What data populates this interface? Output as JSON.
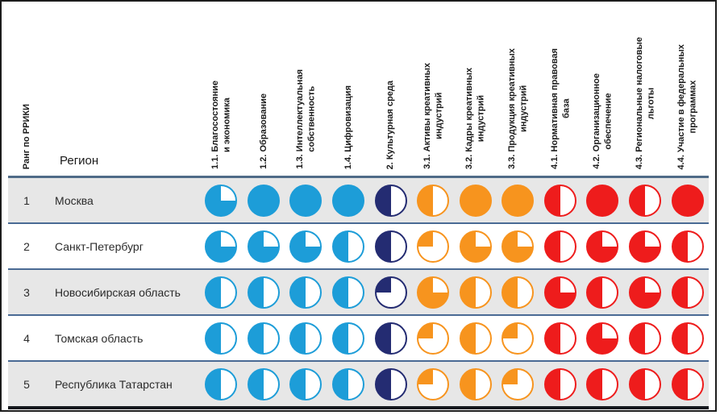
{
  "chart_data": {
    "type": "heatmap",
    "description": "harvey-ball rating table, fill fraction of each circle 0-1",
    "headers": {
      "rank": "Ранг по РРИКИ",
      "region": "Регион"
    },
    "palette": {
      "blue": "#1D9DD8",
      "navy": "#242C72",
      "orange": "#F7941E",
      "red": "#EE1C1C"
    },
    "row_colors": {
      "alt_background": "#E7E7E7",
      "divider": "#4A6A94"
    },
    "columns": [
      {
        "id": "1.1",
        "label": "1.1. Благосостояние\nи экономика",
        "color": "blue"
      },
      {
        "id": "1.2",
        "label": "1.2. Образование",
        "color": "blue"
      },
      {
        "id": "1.3",
        "label": "1.3. Интеллектуальная\nсобственность",
        "color": "blue"
      },
      {
        "id": "1.4",
        "label": "1.4. Цифровизация",
        "color": "blue"
      },
      {
        "id": "2",
        "label": "2. Культурная среда",
        "color": "navy"
      },
      {
        "id": "3.1",
        "label": "3.1. Активы креативных\nиндустрий",
        "color": "orange"
      },
      {
        "id": "3.2",
        "label": "3.2. Кадры креативных\nиндустрий",
        "color": "orange"
      },
      {
        "id": "3.3",
        "label": "3.3. Продукция креативных\nиндустрий",
        "color": "orange"
      },
      {
        "id": "4.1",
        "label": "4.1. Нормативная правовая\nбаза",
        "color": "red"
      },
      {
        "id": "4.2",
        "label": "4.2. Организационное\nобеспечение",
        "color": "red"
      },
      {
        "id": "4.3",
        "label": "4.3. Региональные налоговые\nльготы",
        "color": "red"
      },
      {
        "id": "4.4",
        "label": "4.4. Участие в федеральных\nпрограммах",
        "color": "red"
      }
    ],
    "rows": [
      {
        "rank": "1",
        "region": "Москва",
        "values": [
          0.75,
          1,
          1,
          1,
          0.5,
          0.5,
          1,
          1,
          0.5,
          1,
          0.5,
          1
        ]
      },
      {
        "rank": "2",
        "region": "Санкт-Петербург",
        "values": [
          0.75,
          0.75,
          0.75,
          0.5,
          0.5,
          0.25,
          0.75,
          0.75,
          0.5,
          0.75,
          0.75,
          0.5
        ]
      },
      {
        "rank": "3",
        "region": "Новосибирская область",
        "values": [
          0.5,
          0.5,
          0.5,
          0.5,
          0.25,
          0.75,
          0.5,
          0.5,
          0.75,
          0.5,
          0.75,
          0.5
        ]
      },
      {
        "rank": "4",
        "region": "Томская область",
        "values": [
          0.5,
          0.5,
          0.5,
          0.5,
          0.5,
          0.25,
          0.5,
          0.25,
          0.5,
          0.75,
          0.5,
          0.5
        ]
      },
      {
        "rank": "5",
        "region": "Республика Татарстан",
        "values": [
          0.5,
          0.5,
          0.5,
          0.5,
          0.5,
          0.25,
          0.5,
          0.25,
          0.5,
          0.5,
          0.5,
          0.5
        ]
      }
    ]
  }
}
